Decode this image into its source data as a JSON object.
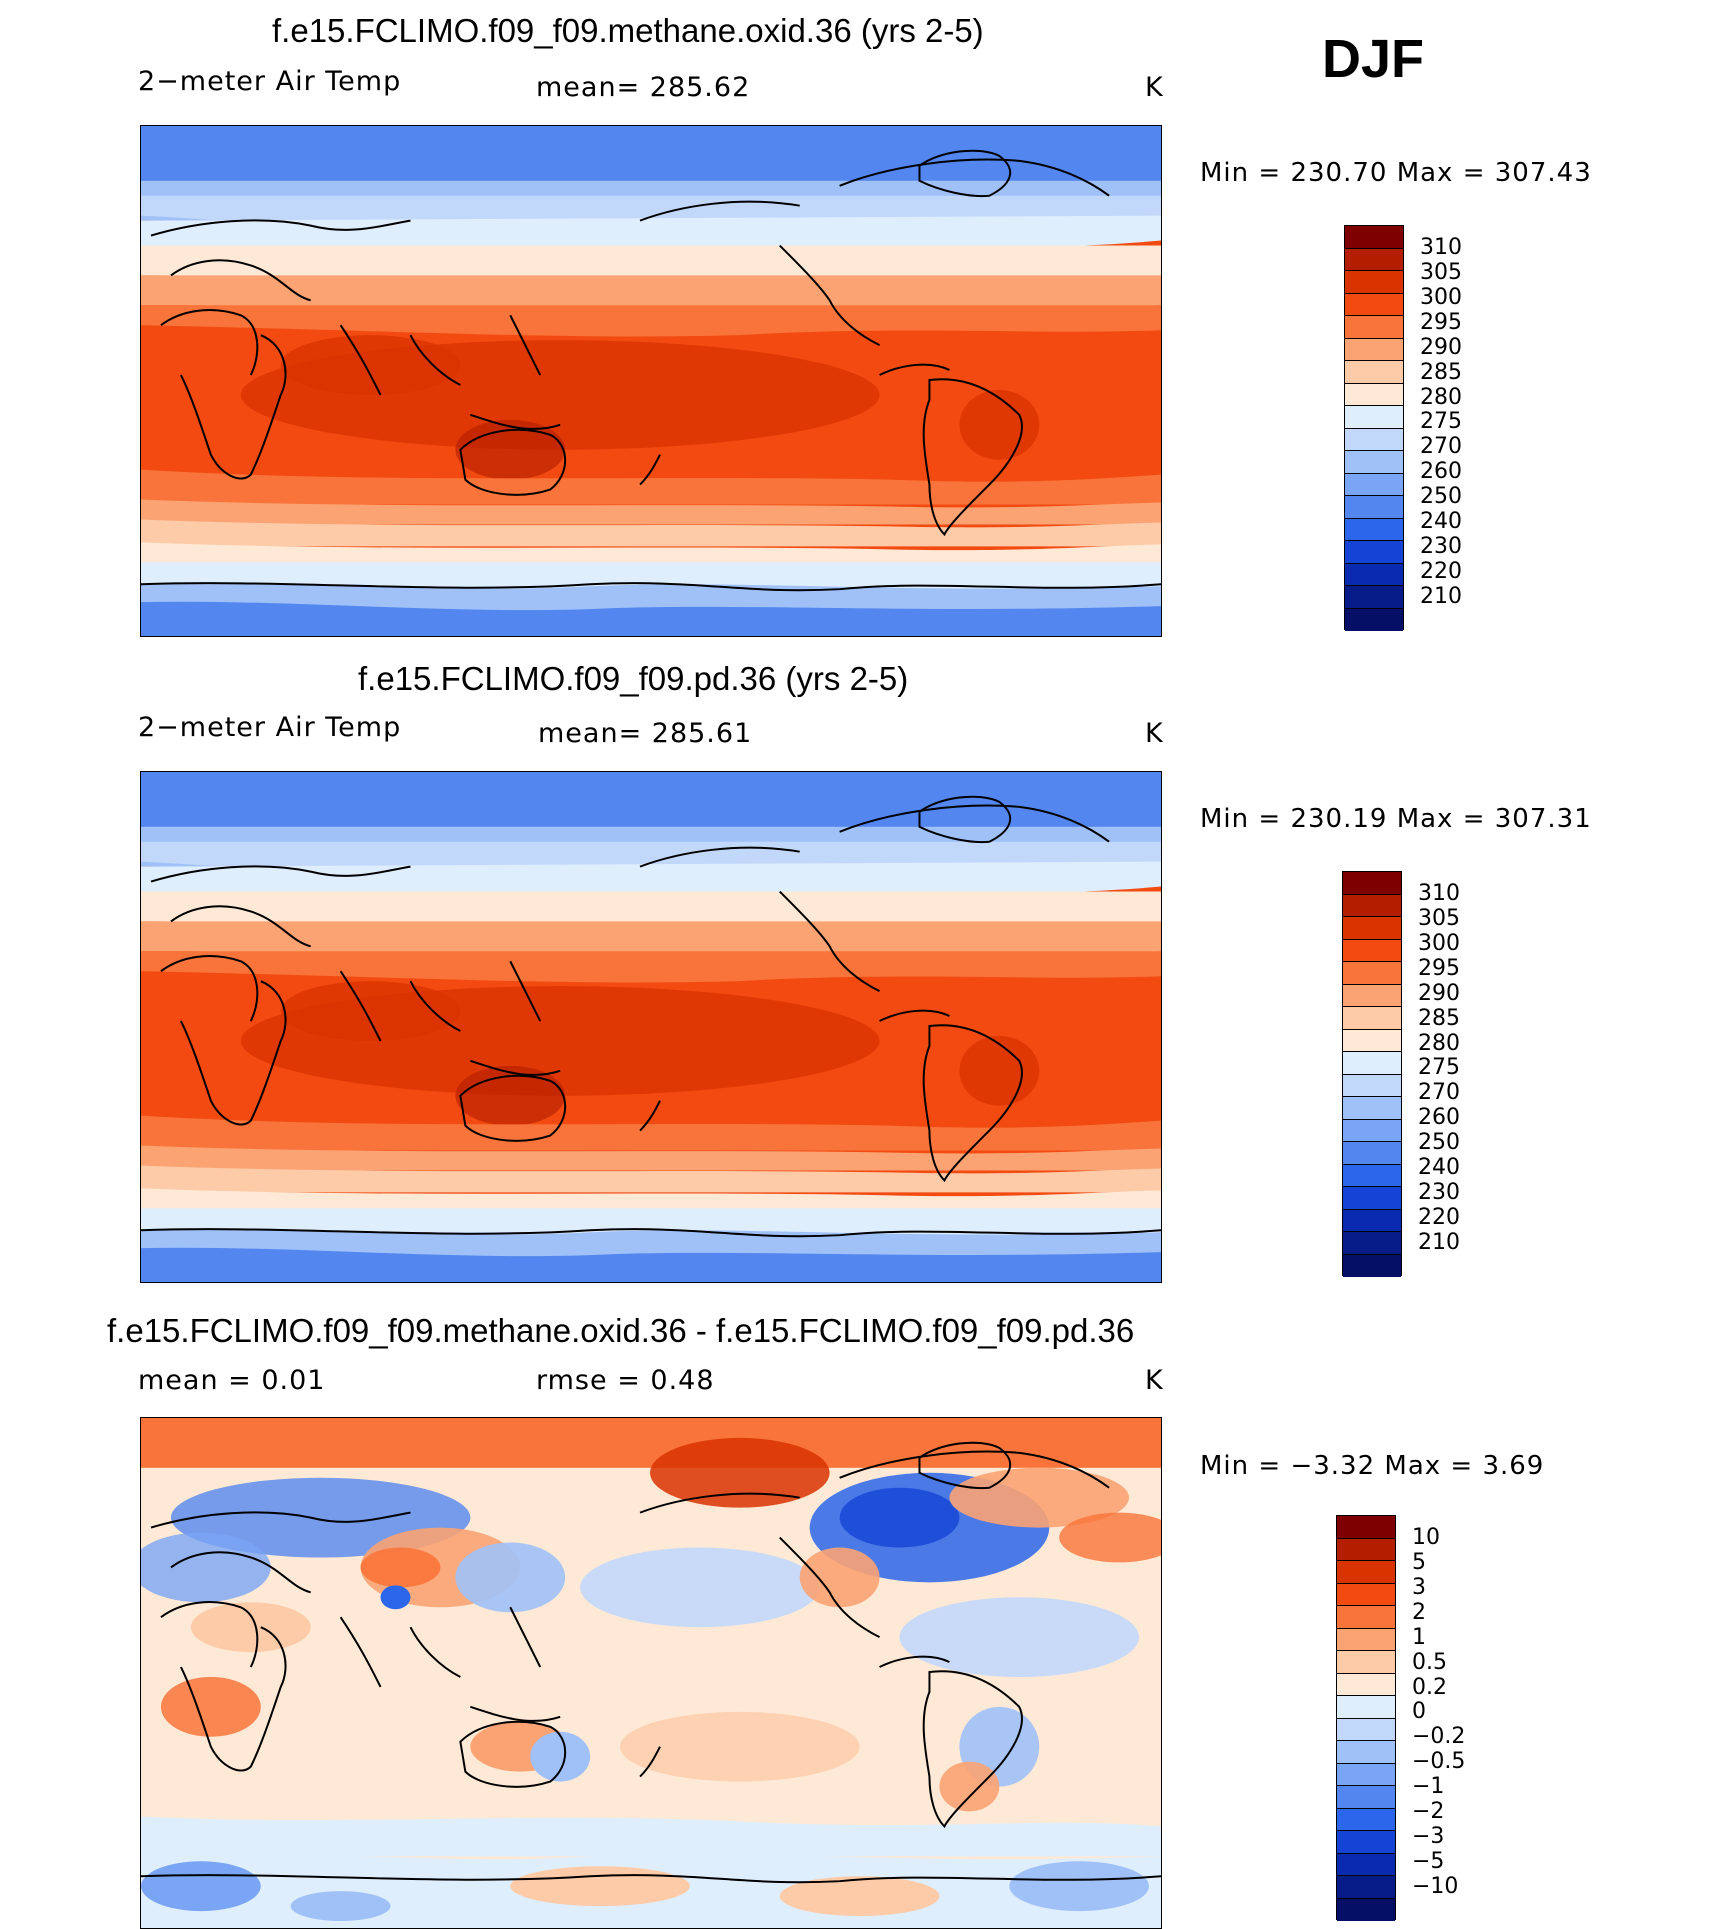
{
  "season": "DJF",
  "panels": [
    {
      "title": "f.e15.FCLIMO.f09_f09.methane.oxid.36 (yrs 2-5)",
      "left_label": "2−meter Air Temp",
      "center_label": "mean=  285.62",
      "units": "K",
      "minmax": "Min  =  230.70  Max  =  307.43",
      "kind": "abs",
      "colorbar": {
        "colors": [
          "#7f0000",
          "#b31d00",
          "#d93300",
          "#f24a10",
          "#f9743a",
          "#fba373",
          "#fdcba8",
          "#fde9d6",
          "#dfeefc",
          "#c2d8fb",
          "#a0c1f8",
          "#7aa5f4",
          "#5387ef",
          "#2c66ea",
          "#1443d6",
          "#0a2ab0",
          "#071b88",
          "#060f66"
        ],
        "labels": [
          "310",
          "305",
          "300",
          "295",
          "290",
          "285",
          "280",
          "275",
          "270",
          "260",
          "250",
          "240",
          "230",
          "220",
          "210"
        ]
      }
    },
    {
      "title": "f.e15.FCLIMO.f09_f09.pd.36 (yrs 2-5)",
      "left_label": "2−meter Air Temp",
      "center_label": "mean=  285.61",
      "units": "K",
      "minmax": "Min  =  230.19  Max  =  307.31",
      "kind": "abs",
      "colorbar": {
        "colors": [
          "#7f0000",
          "#b31d00",
          "#d93300",
          "#f24a10",
          "#f9743a",
          "#fba373",
          "#fdcba8",
          "#fde9d6",
          "#dfeefc",
          "#c2d8fb",
          "#a0c1f8",
          "#7aa5f4",
          "#5387ef",
          "#2c66ea",
          "#1443d6",
          "#0a2ab0",
          "#071b88",
          "#060f66"
        ],
        "labels": [
          "310",
          "305",
          "300",
          "295",
          "290",
          "285",
          "280",
          "275",
          "270",
          "260",
          "250",
          "240",
          "230",
          "220",
          "210"
        ]
      }
    },
    {
      "title": "f.e15.FCLIMO.f09_f09.methane.oxid.36 - f.e15.FCLIMO.f09_f09.pd.36",
      "left_label": "mean  =     0.01",
      "center_label": "rmse  =     0.48",
      "units": "K",
      "minmax": "Min  =    −3.32  Max  =      3.69",
      "kind": "diff",
      "colorbar": {
        "colors": [
          "#7f0000",
          "#b31d00",
          "#d93300",
          "#f24a10",
          "#f9743a",
          "#fba373",
          "#fdcba8",
          "#fde9d6",
          "#dfeefc",
          "#c2d8fb",
          "#a0c1f8",
          "#7aa5f4",
          "#5387ef",
          "#2c66ea",
          "#1443d6",
          "#0a2ab0",
          "#071b88",
          "#060f66"
        ],
        "labels": [
          "10",
          "5",
          "3",
          "2",
          "1",
          "0.5",
          "0.2",
          "0",
          "−0.2",
          "−0.5",
          "−1",
          "−2",
          "−3",
          "−5",
          "−10"
        ]
      }
    }
  ]
}
